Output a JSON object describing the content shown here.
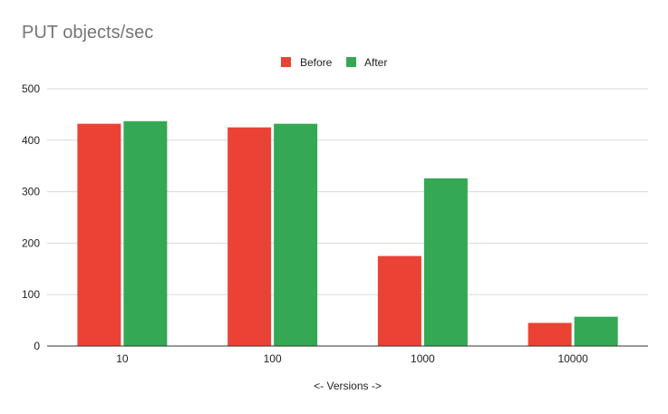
{
  "chart_data": {
    "type": "bar",
    "title": "PUT objects/sec",
    "xlabel": "<- Versions ->",
    "ylabel": "",
    "categories": [
      "10",
      "100",
      "1000",
      "10000"
    ],
    "series": [
      {
        "name": "Before",
        "color": "#ea4335",
        "values": [
          432,
          425,
          175,
          45
        ]
      },
      {
        "name": "After",
        "color": "#34a853",
        "values": [
          437,
          432,
          326,
          57
        ]
      }
    ],
    "ylim": [
      0,
      500
    ],
    "yticks": [
      "0",
      "100",
      "200",
      "300",
      "400",
      "500"
    ],
    "grid": true,
    "legend": "top"
  }
}
